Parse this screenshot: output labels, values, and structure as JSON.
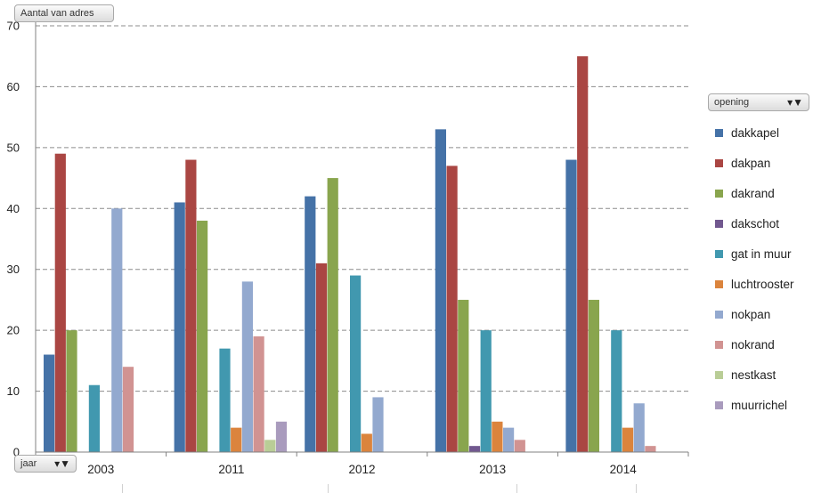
{
  "value_field": {
    "label": "Aantal van adres"
  },
  "legend_field": {
    "label": "opening",
    "icon": "filter-icon"
  },
  "axis_field": {
    "label": "jaar",
    "icon": "filter-icon"
  },
  "chart_data": {
    "type": "bar",
    "categories": [
      "2003",
      "2011",
      "2012",
      "2013",
      "2014"
    ],
    "ylim": [
      0,
      70
    ],
    "yticks": [
      0,
      10,
      20,
      30,
      40,
      50,
      60,
      70
    ],
    "grid": true,
    "legend_position": "right",
    "series": [
      {
        "name": "dakkapel",
        "color": "#4572a7",
        "values": [
          16,
          41,
          42,
          53,
          48
        ]
      },
      {
        "name": "dakpan",
        "color": "#aa4643",
        "values": [
          49,
          48,
          31,
          47,
          65
        ]
      },
      {
        "name": "dakrand",
        "color": "#89a54e",
        "values": [
          20,
          38,
          45,
          25,
          25
        ]
      },
      {
        "name": "dakschot",
        "color": "#71588f",
        "values": [
          0,
          0,
          0,
          1,
          0
        ]
      },
      {
        "name": "gat in muur",
        "color": "#4198af",
        "values": [
          11,
          17,
          29,
          20,
          20
        ]
      },
      {
        "name": "luchtrooster",
        "color": "#db843d",
        "values": [
          0,
          4,
          3,
          5,
          4
        ]
      },
      {
        "name": "nokpan",
        "color": "#93a9cf",
        "values": [
          40,
          28,
          9,
          4,
          8
        ]
      },
      {
        "name": "nokrand",
        "color": "#d19392",
        "values": [
          14,
          19,
          0,
          2,
          1
        ]
      },
      {
        "name": "nestkast",
        "color": "#b9cd96",
        "values": [
          0,
          2,
          0,
          0,
          0
        ]
      },
      {
        "name": "muurrichel",
        "color": "#a99bbd",
        "values": [
          0,
          5,
          0,
          0,
          0
        ]
      }
    ]
  }
}
